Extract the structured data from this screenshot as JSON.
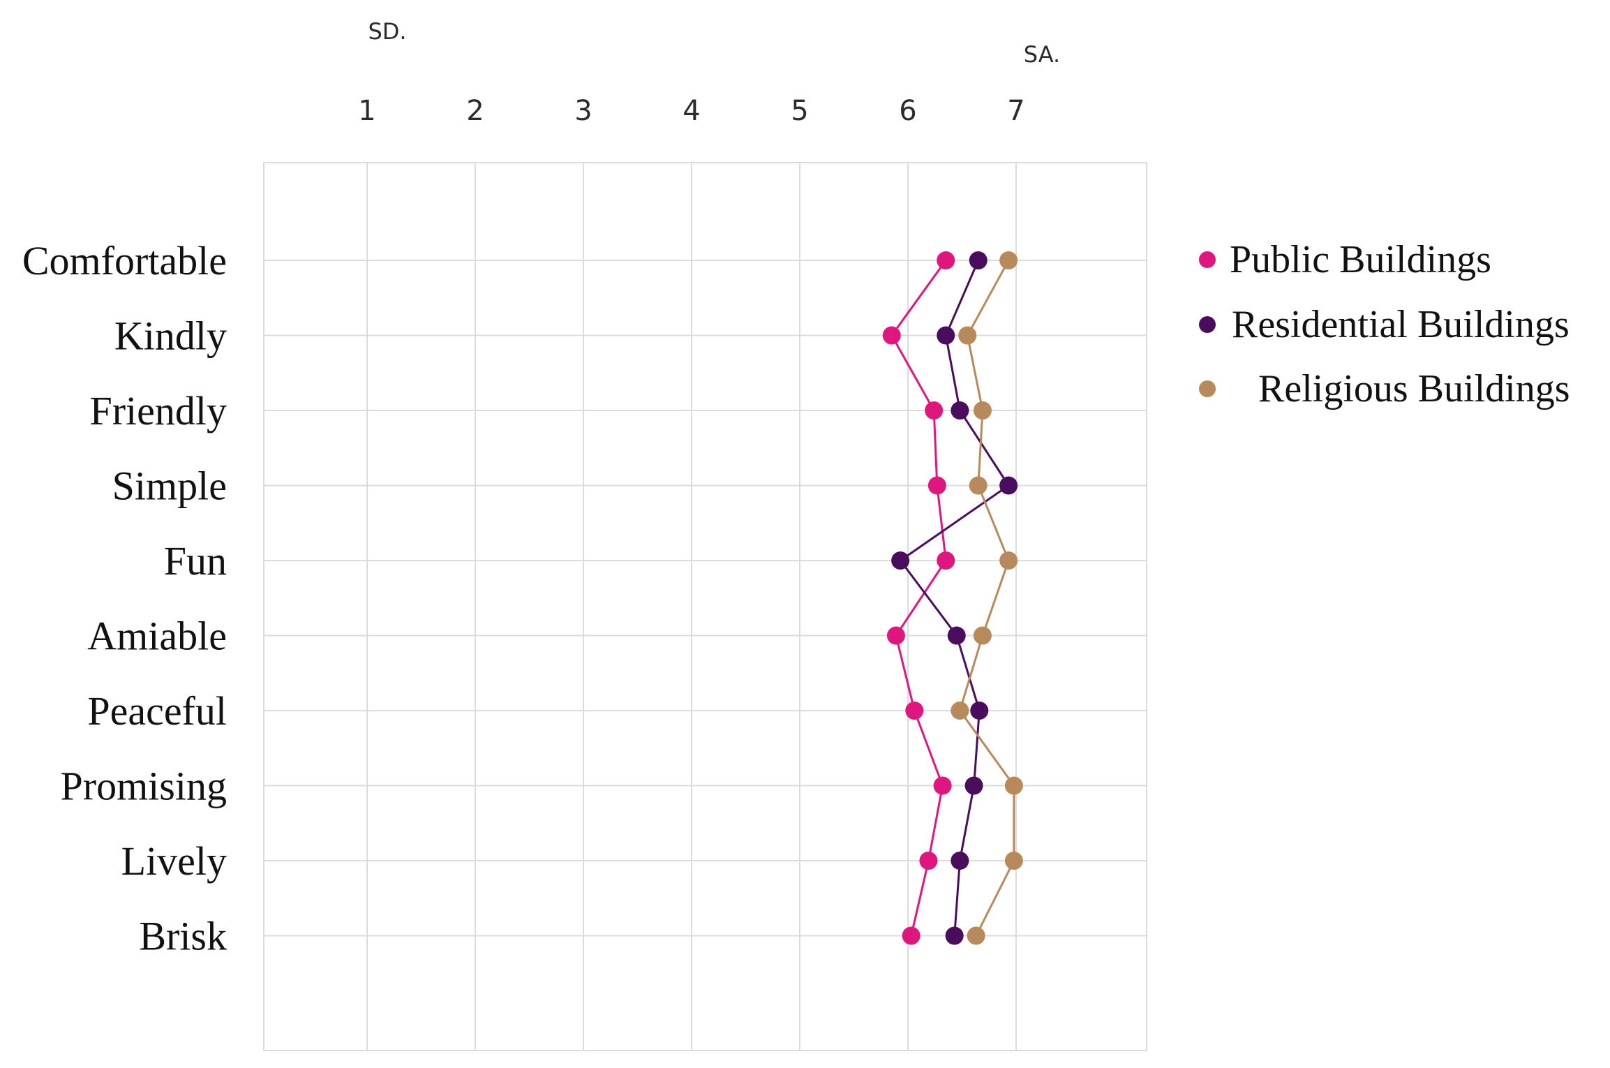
{
  "chart_data": {
    "type": "line",
    "orientation": "horizontal-scale",
    "scale_anchors": {
      "low": "SD.",
      "high": "SA."
    },
    "x_ticks": [
      "1",
      "2",
      "3",
      "4",
      "5",
      "6",
      "7"
    ],
    "xlim": [
      0.1,
      8.0
    ],
    "categories": [
      "Comfortable",
      "Kindly",
      "Friendly",
      "Simple",
      "Fun",
      "Amiable",
      "Peaceful",
      "Promising",
      "Lively",
      "Brisk"
    ],
    "series": [
      {
        "name": "Public Buildings",
        "color": "#e0167f",
        "values": [
          6.35,
          5.85,
          6.24,
          6.27,
          6.35,
          5.89,
          6.06,
          6.32,
          6.19,
          6.03
        ]
      },
      {
        "name": "Residential Buildings",
        "color": "#4a0c5c",
        "values": [
          6.65,
          6.35,
          6.48,
          6.93,
          5.93,
          6.45,
          6.66,
          6.61,
          6.48,
          6.43
        ]
      },
      {
        "name": "Religious Buildings",
        "color": "#b8895a",
        "values": [
          6.93,
          6.55,
          6.69,
          6.65,
          6.93,
          6.69,
          6.48,
          6.98,
          6.98,
          6.63
        ]
      }
    ],
    "grid": true,
    "legend": "right"
  }
}
